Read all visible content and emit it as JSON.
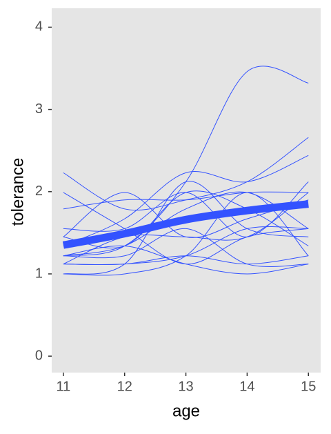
{
  "chart_data": {
    "type": "line",
    "x_label": "age",
    "y_label": "tolerance",
    "x": [
      11,
      12,
      13,
      14,
      15
    ],
    "series": [
      {
        "values": [
          2.23,
          1.79,
          1.9,
          2.12,
          2.66
        ]
      },
      {
        "values": [
          1.12,
          1.45,
          1.45,
          1.45,
          1.99
        ]
      },
      {
        "values": [
          1.45,
          1.34,
          1.99,
          1.79,
          1.34
        ]
      },
      {
        "values": [
          1.22,
          1.22,
          1.55,
          1.12,
          1.12
        ]
      },
      {
        "values": [
          1.45,
          1.99,
          1.45,
          1.67,
          1.9
        ]
      },
      {
        "values": [
          1.34,
          1.67,
          2.23,
          2.12,
          2.44
        ]
      },
      {
        "values": [
          1.79,
          1.9,
          1.9,
          1.99,
          1.99
        ]
      },
      {
        "values": [
          1.12,
          1.12,
          1.22,
          1.12,
          1.22
        ]
      },
      {
        "values": [
          1.22,
          1.34,
          1.12,
          1.0,
          1.12
        ]
      },
      {
        "values": [
          1.0,
          1.0,
          1.22,
          1.99,
          1.22
        ]
      },
      {
        "values": [
          1.99,
          1.55,
          1.12,
          1.45,
          1.55
        ]
      },
      {
        "values": [
          1.22,
          1.34,
          2.12,
          3.46,
          3.32
        ]
      },
      {
        "values": [
          1.55,
          1.55,
          1.99,
          1.45,
          2.12
        ]
      },
      {
        "values": [
          1.12,
          1.12,
          1.22,
          1.55,
          1.55
        ]
      },
      {
        "values": [
          1.22,
          1.34,
          1.79,
          1.99,
          1.55
        ]
      },
      {
        "values": [
          1.0,
          1.12,
          2.12,
          1.55,
          1.45
        ]
      }
    ],
    "trend": {
      "values": [
        1.35,
        1.49,
        1.66,
        1.77,
        1.85
      ]
    },
    "color": "#3352ff",
    "xlim": [
      10.81,
      15.2
    ],
    "ylim": [
      -0.2,
      4.23
    ],
    "xticks": [
      11,
      12,
      13,
      14,
      15
    ],
    "yticks": [
      0,
      1,
      2,
      3,
      4
    ],
    "grid": false
  }
}
